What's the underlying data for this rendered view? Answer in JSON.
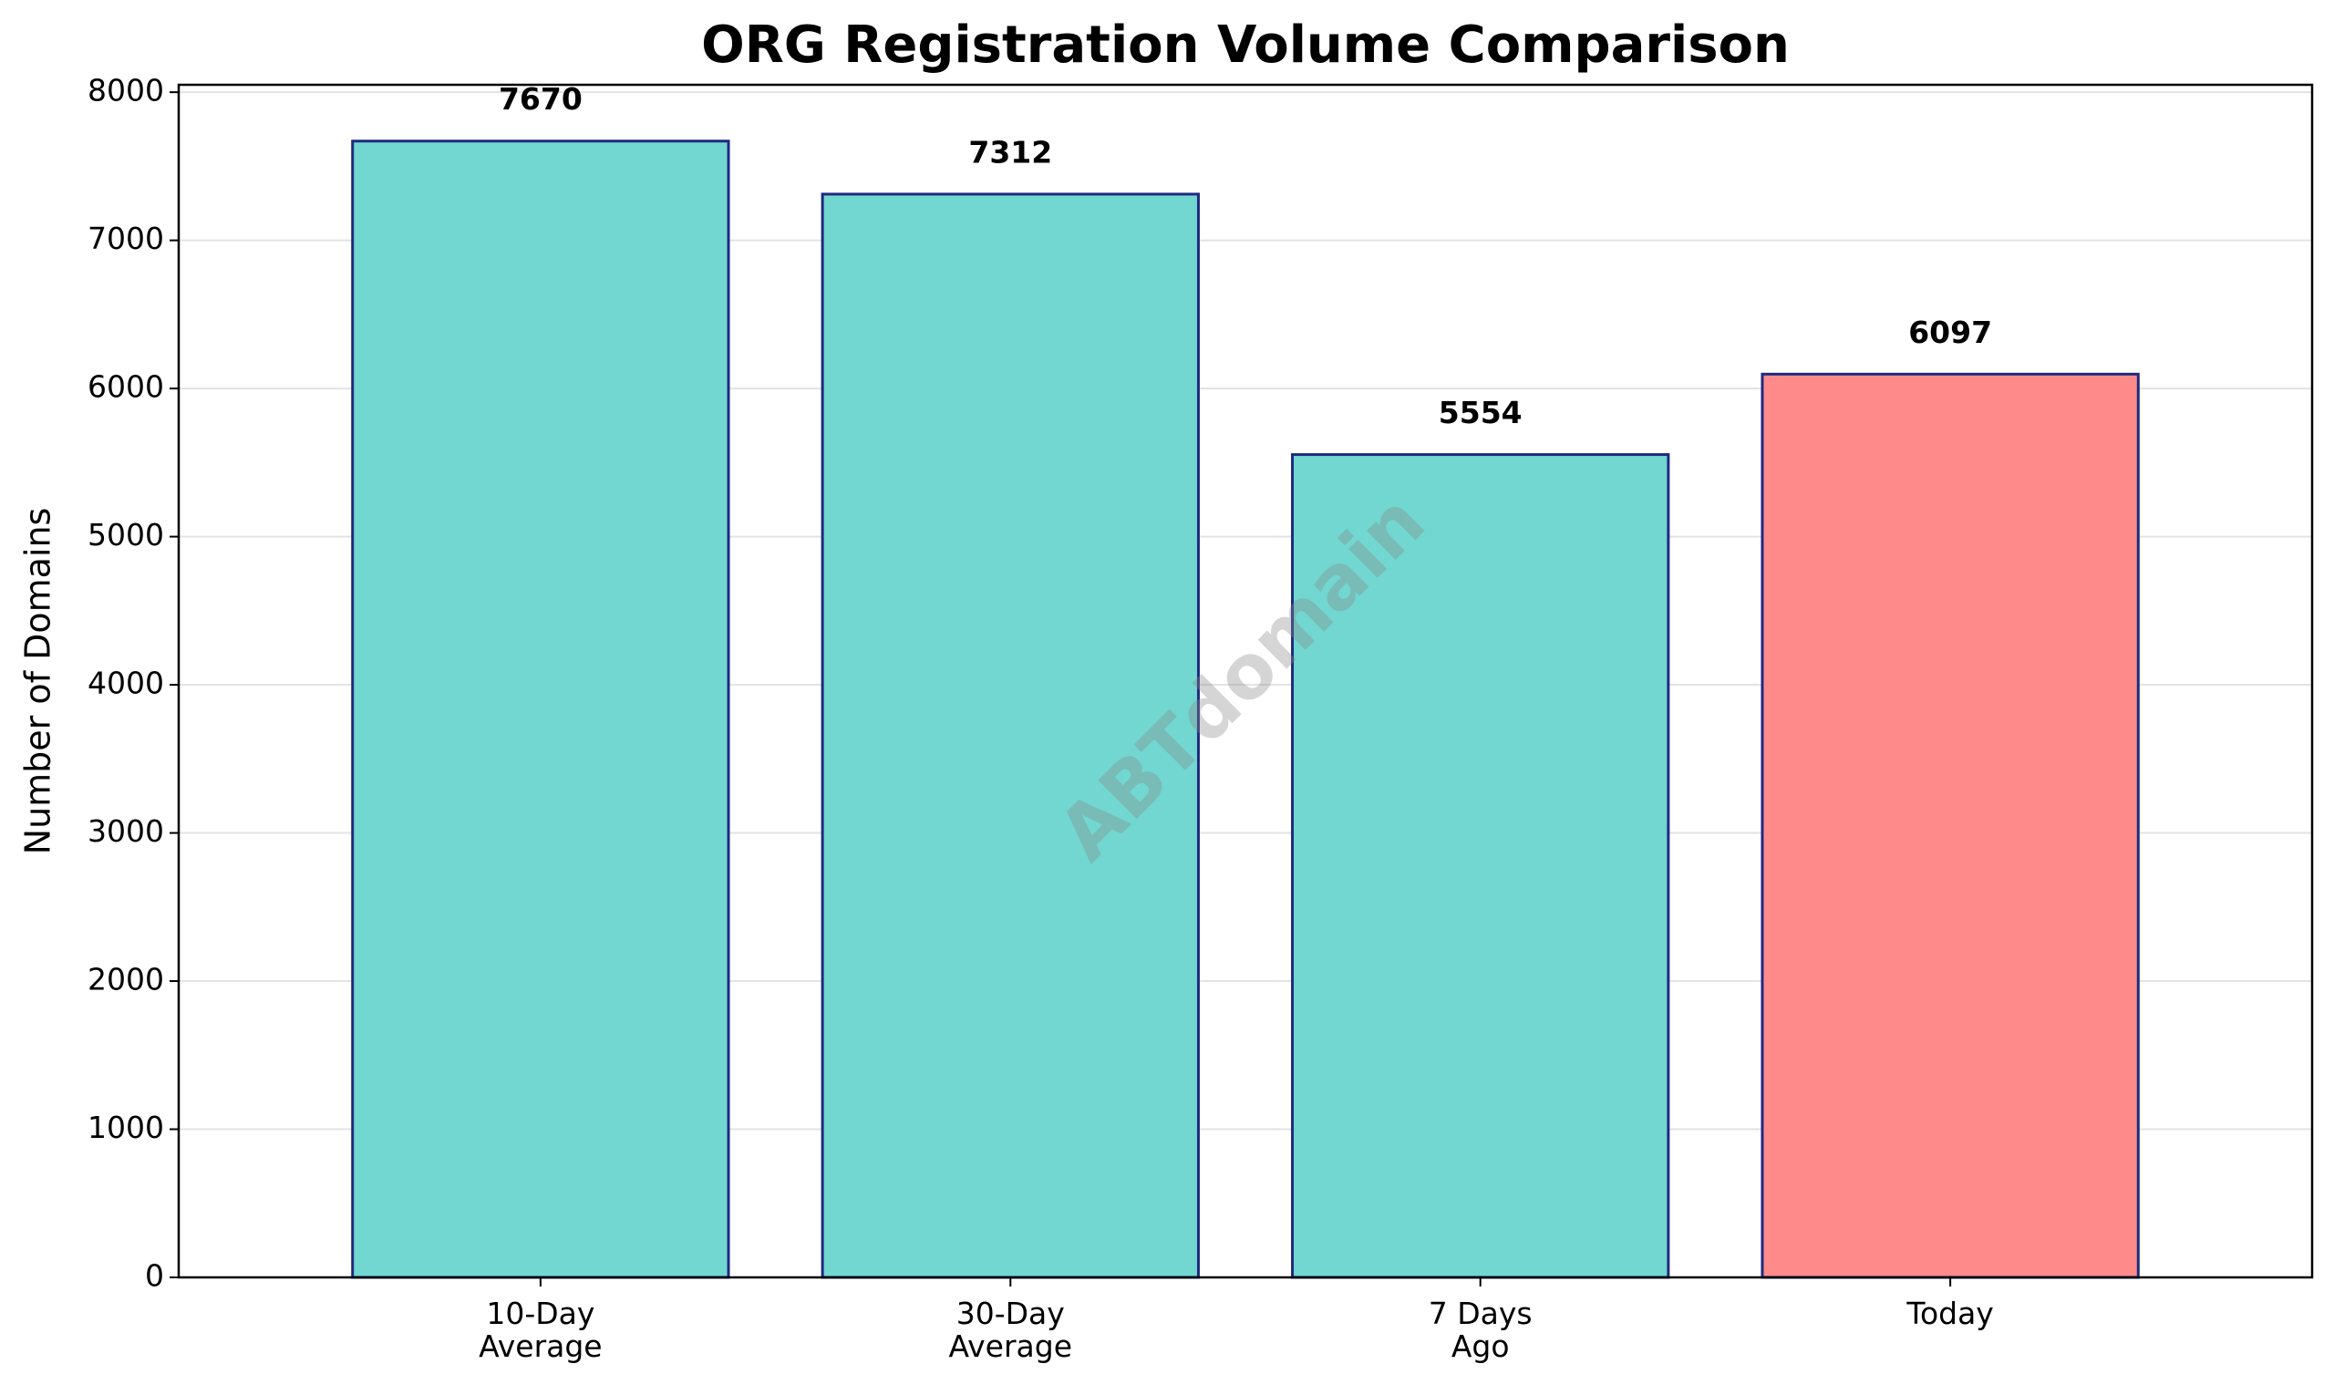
{
  "chart_data": {
    "type": "bar",
    "title": "ORG Registration Volume Comparison",
    "y_label": "Number of Domains",
    "watermark": "ABTdomain",
    "categories": [
      "10-Day\nAverage",
      "30-Day\nAverage",
      "7 Days\nAgo",
      "Today"
    ],
    "values": [
      7670,
      7312,
      5554,
      6097
    ],
    "colors": [
      "#71d7d0",
      "#71d7d0",
      "#71d7d0",
      "#ff8a8a"
    ],
    "edge_color": "#1f2a80",
    "ylim": [
      0,
      8050
    ],
    "yticks": [
      0,
      1000,
      2000,
      3000,
      4000,
      5000,
      6000,
      7000,
      8000
    ],
    "grid": true
  }
}
